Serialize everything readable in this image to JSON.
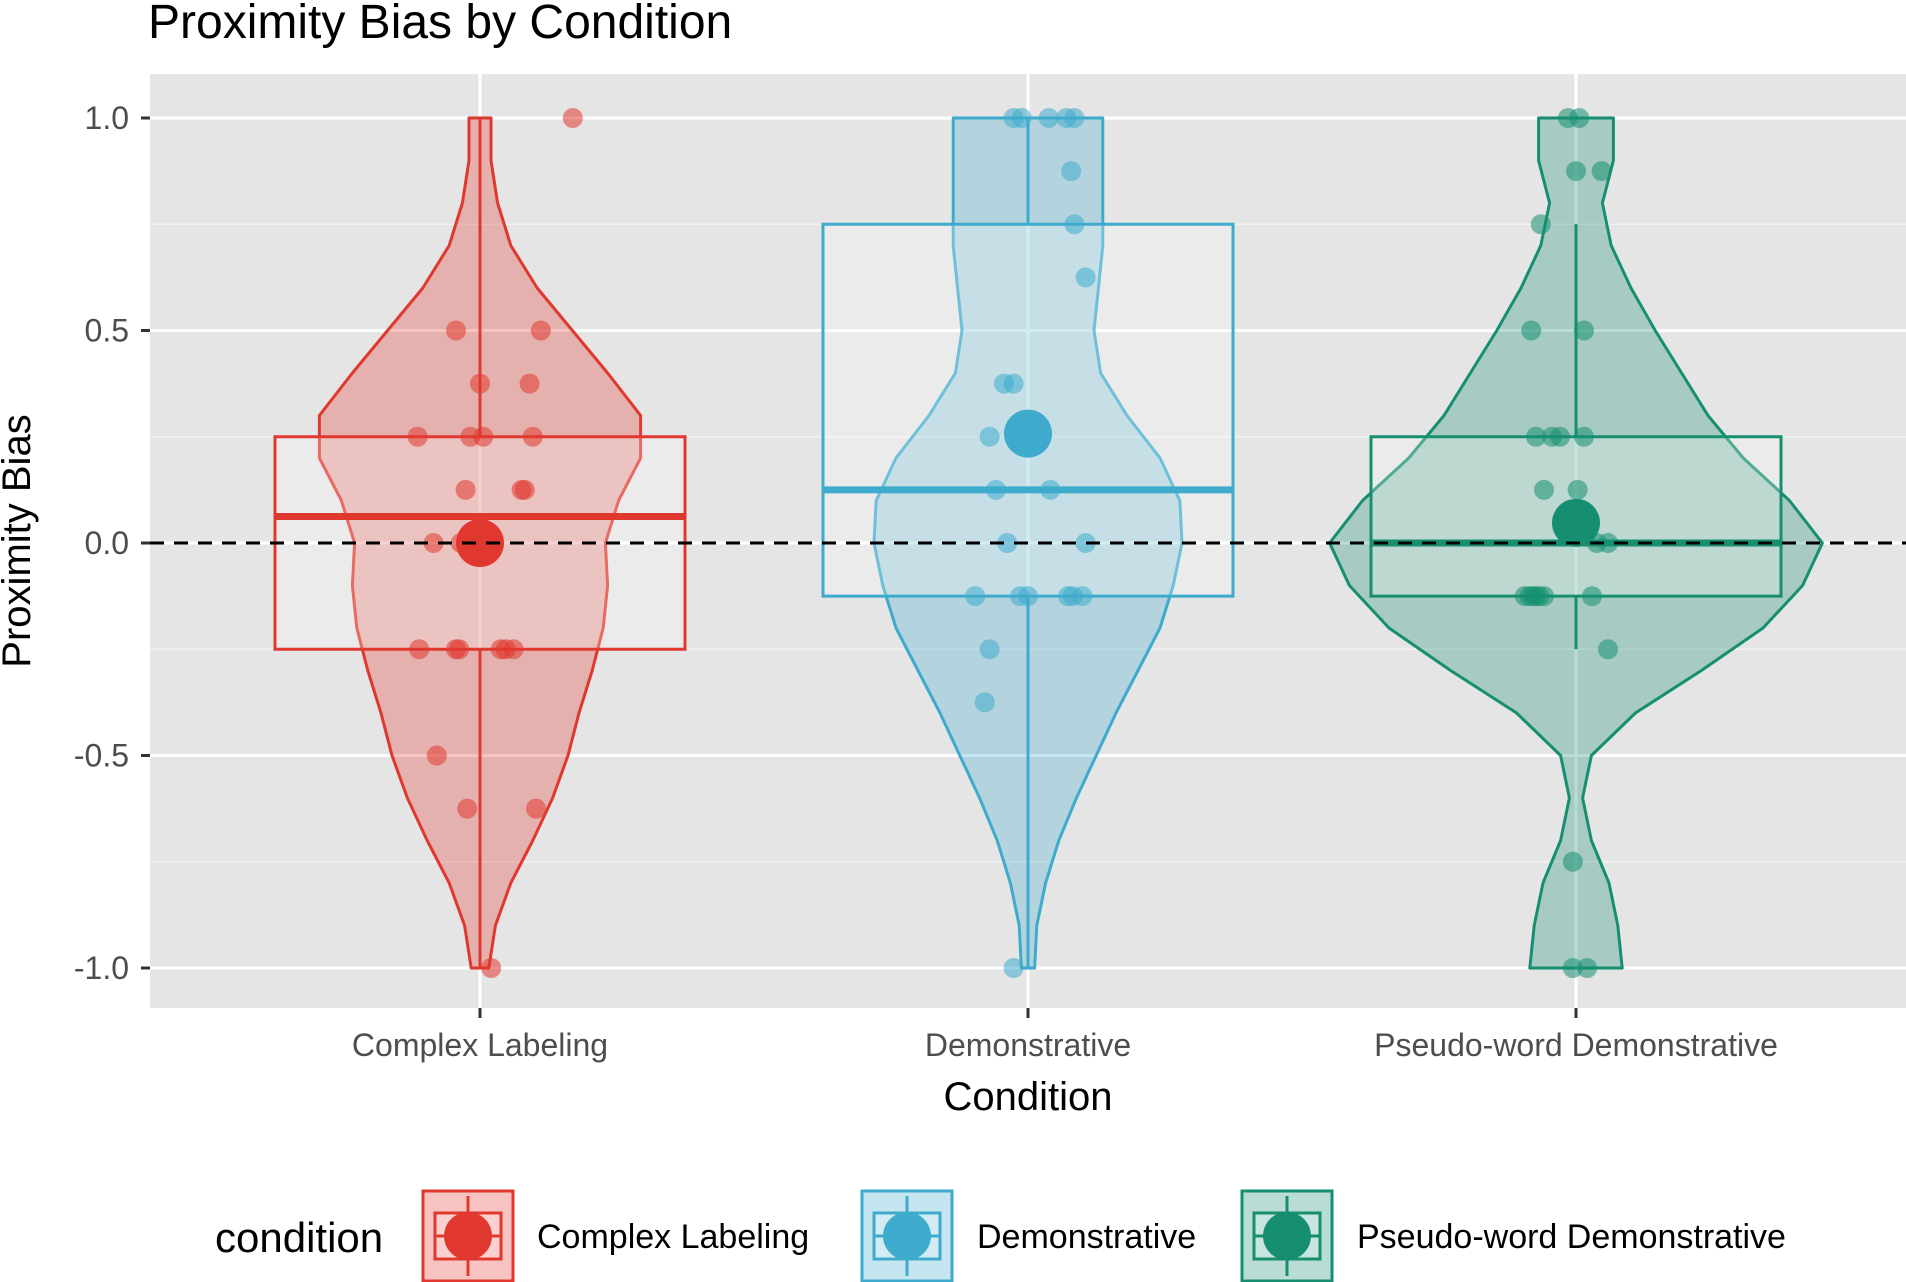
{
  "chart_data": {
    "type": "violin-boxplot",
    "title": "Proximity Bias by Condition",
    "xlabel": "Condition",
    "ylabel": "Proximity Bias",
    "ylim": [
      -1.08,
      1.08
    ],
    "y_ticks": [
      1.0,
      0.5,
      0.0,
      -0.5,
      -1.0
    ],
    "y_tick_labels": [
      "1.0",
      "0.5",
      "0.0",
      "-0.5",
      "-1.0"
    ],
    "reference_line": 0,
    "grid": true,
    "legend": {
      "title": "condition",
      "position": "bottom"
    },
    "categories": [
      "Complex Labeling",
      "Demonstrative",
      "Pseudo-word Demonstrative"
    ],
    "series": [
      {
        "name": "Complex Labeling",
        "color": "#E0382F",
        "box": {
          "lower_whisker": -1.0,
          "q1": -0.25,
          "median": 0.0625,
          "q3": 0.25,
          "upper_whisker": 1.0
        },
        "mean": 0.0,
        "violin": [
          [
            -1.0,
            0.04
          ],
          [
            -0.9,
            0.07
          ],
          [
            -0.8,
            0.14
          ],
          [
            -0.7,
            0.24
          ],
          [
            -0.6,
            0.33
          ],
          [
            -0.5,
            0.4
          ],
          [
            -0.4,
            0.45
          ],
          [
            -0.3,
            0.51
          ],
          [
            -0.2,
            0.56
          ],
          [
            -0.1,
            0.58
          ],
          [
            0.0,
            0.57
          ],
          [
            0.1,
            0.63
          ],
          [
            0.2,
            0.73
          ],
          [
            0.3,
            0.73
          ],
          [
            0.4,
            0.58
          ],
          [
            0.5,
            0.42
          ],
          [
            0.6,
            0.26
          ],
          [
            0.7,
            0.14
          ],
          [
            0.8,
            0.08
          ],
          [
            0.9,
            0.05
          ],
          [
            1.0,
            0.05
          ]
        ],
        "points": [
          [
            0.58,
            1.0
          ],
          [
            -0.15,
            0.5
          ],
          [
            0.38,
            0.5
          ],
          [
            0.0,
            0.375
          ],
          [
            0.31,
            0.375
          ],
          [
            -0.39,
            0.25
          ],
          [
            -0.06,
            0.25
          ],
          [
            0.02,
            0.25
          ],
          [
            0.33,
            0.25
          ],
          [
            -0.09,
            0.125
          ],
          [
            0.26,
            0.125
          ],
          [
            0.28,
            0.125
          ],
          [
            -0.29,
            0.0
          ],
          [
            -0.12,
            0.0
          ],
          [
            -0.04,
            0.0
          ],
          [
            -0.38,
            -0.25
          ],
          [
            -0.15,
            -0.25
          ],
          [
            -0.13,
            -0.25
          ],
          [
            0.13,
            -0.25
          ],
          [
            0.16,
            -0.25
          ],
          [
            0.21,
            -0.25
          ],
          [
            -0.27,
            -0.5
          ],
          [
            -0.08,
            -0.625
          ],
          [
            0.35,
            -0.625
          ],
          [
            0.07,
            -1.0
          ]
        ]
      },
      {
        "name": "Demonstrative",
        "color": "#3EABCC",
        "box": {
          "lower_whisker": -1.0,
          "q1": -0.125,
          "median": 0.125,
          "q3": 0.75,
          "upper_whisker": 1.0
        },
        "mean": 0.2575,
        "violin": [
          [
            -1.0,
            0.03
          ],
          [
            -0.9,
            0.04
          ],
          [
            -0.8,
            0.08
          ],
          [
            -0.7,
            0.14
          ],
          [
            -0.6,
            0.22
          ],
          [
            -0.5,
            0.31
          ],
          [
            -0.4,
            0.4
          ],
          [
            -0.3,
            0.5
          ],
          [
            -0.2,
            0.6
          ],
          [
            -0.1,
            0.66
          ],
          [
            0.0,
            0.7
          ],
          [
            0.1,
            0.69
          ],
          [
            0.2,
            0.6
          ],
          [
            0.3,
            0.45
          ],
          [
            0.4,
            0.33
          ],
          [
            0.5,
            0.3
          ],
          [
            0.6,
            0.32
          ],
          [
            0.7,
            0.34
          ],
          [
            0.8,
            0.34
          ],
          [
            0.9,
            0.34
          ],
          [
            1.0,
            0.34
          ]
        ],
        "points": [
          [
            -0.09,
            1.0
          ],
          [
            -0.04,
            1.0
          ],
          [
            0.13,
            1.0
          ],
          [
            0.24,
            1.0
          ],
          [
            0.29,
            1.0
          ],
          [
            0.27,
            0.875
          ],
          [
            0.29,
            0.75
          ],
          [
            0.36,
            0.625
          ],
          [
            -0.15,
            0.375
          ],
          [
            -0.09,
            0.375
          ],
          [
            -0.24,
            0.25
          ],
          [
            -0.05,
            0.25
          ],
          [
            -0.2,
            0.125
          ],
          [
            0.14,
            0.125
          ],
          [
            -0.13,
            0.0
          ],
          [
            0.36,
            0.0
          ],
          [
            -0.33,
            -0.125
          ],
          [
            -0.05,
            -0.125
          ],
          [
            0.0,
            -0.125
          ],
          [
            0.25,
            -0.125
          ],
          [
            0.28,
            -0.125
          ],
          [
            0.34,
            -0.125
          ],
          [
            -0.24,
            -0.25
          ],
          [
            -0.27,
            -0.375
          ],
          [
            -0.09,
            -1.0
          ]
        ]
      },
      {
        "name": "Pseudo-word Demonstrative",
        "color": "#168F71",
        "box": {
          "lower_whisker": -0.25,
          "q1": -0.125,
          "median": 0.0,
          "q3": 0.25,
          "upper_whisker": 0.75
        },
        "mean": 0.0475,
        "violin": [
          [
            -1.0,
            0.21
          ],
          [
            -0.9,
            0.19
          ],
          [
            -0.8,
            0.15
          ],
          [
            -0.7,
            0.07
          ],
          [
            -0.6,
            0.03
          ],
          [
            -0.5,
            0.07
          ],
          [
            -0.4,
            0.27
          ],
          [
            -0.3,
            0.57
          ],
          [
            -0.2,
            0.85
          ],
          [
            -0.1,
            1.03
          ],
          [
            0.0,
            1.12
          ],
          [
            0.1,
            0.97
          ],
          [
            0.2,
            0.76
          ],
          [
            0.3,
            0.6
          ],
          [
            0.4,
            0.48
          ],
          [
            0.5,
            0.36
          ],
          [
            0.6,
            0.25
          ],
          [
            0.7,
            0.16
          ],
          [
            0.8,
            0.12
          ],
          [
            0.9,
            0.17
          ],
          [
            1.0,
            0.17
          ]
        ],
        "points": [
          [
            -0.05,
            1.0
          ],
          [
            0.02,
            1.0
          ],
          [
            0.16,
            0.875
          ],
          [
            0.0,
            0.875
          ],
          [
            -0.22,
            0.75
          ],
          [
            -0.28,
            0.5
          ],
          [
            0.05,
            0.5
          ],
          [
            -0.25,
            0.25
          ],
          [
            -0.15,
            0.25
          ],
          [
            -0.1,
            0.25
          ],
          [
            0.05,
            0.25
          ],
          [
            -0.2,
            0.125
          ],
          [
            0.01,
            0.125
          ],
          [
            0.13,
            0.0
          ],
          [
            0.2,
            0.0
          ],
          [
            -0.32,
            -0.125
          ],
          [
            -0.29,
            -0.125
          ],
          [
            -0.27,
            -0.125
          ],
          [
            -0.25,
            -0.125
          ],
          [
            -0.23,
            -0.125
          ],
          [
            -0.2,
            -0.125
          ],
          [
            0.1,
            -0.125
          ],
          [
            0.2,
            -0.25
          ],
          [
            -0.02,
            -0.75
          ],
          [
            -0.02,
            -1.0
          ],
          [
            0.07,
            -1.0
          ]
        ]
      }
    ]
  }
}
